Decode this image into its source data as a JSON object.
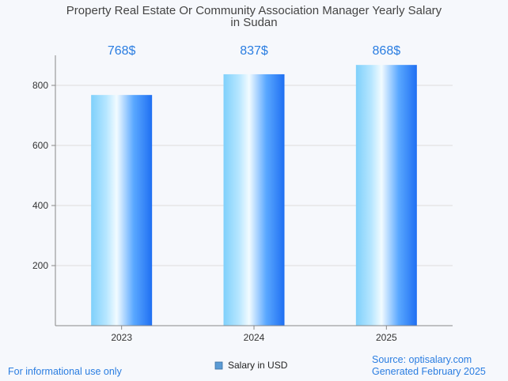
{
  "chart_data": {
    "type": "bar",
    "title_lines": [
      "Property Real Estate Or Community Association Manager Yearly Salary",
      "in Sudan"
    ],
    "categories": [
      "2023",
      "2024",
      "2025"
    ],
    "series": [
      {
        "name": "Salary in USD",
        "values": [
          768,
          837,
          868
        ]
      }
    ],
    "data_labels": [
      "768$",
      "837$",
      "868$"
    ],
    "yticks": [
      200,
      400,
      600,
      800
    ],
    "ylim": [
      0,
      900
    ],
    "grid": true,
    "legend": "bottom-center"
  },
  "footer": {
    "left": "For informational use only",
    "source": "Source: optisalary.com",
    "generated": "Generated February 2025"
  },
  "colors": {
    "bar_light": "#e8f6ff",
    "bar_mid": "#7fd0fb",
    "bar_dark": "#1f6ff2",
    "label": "#2a7de1",
    "grid": "#dddddd",
    "axis": "#888888"
  }
}
